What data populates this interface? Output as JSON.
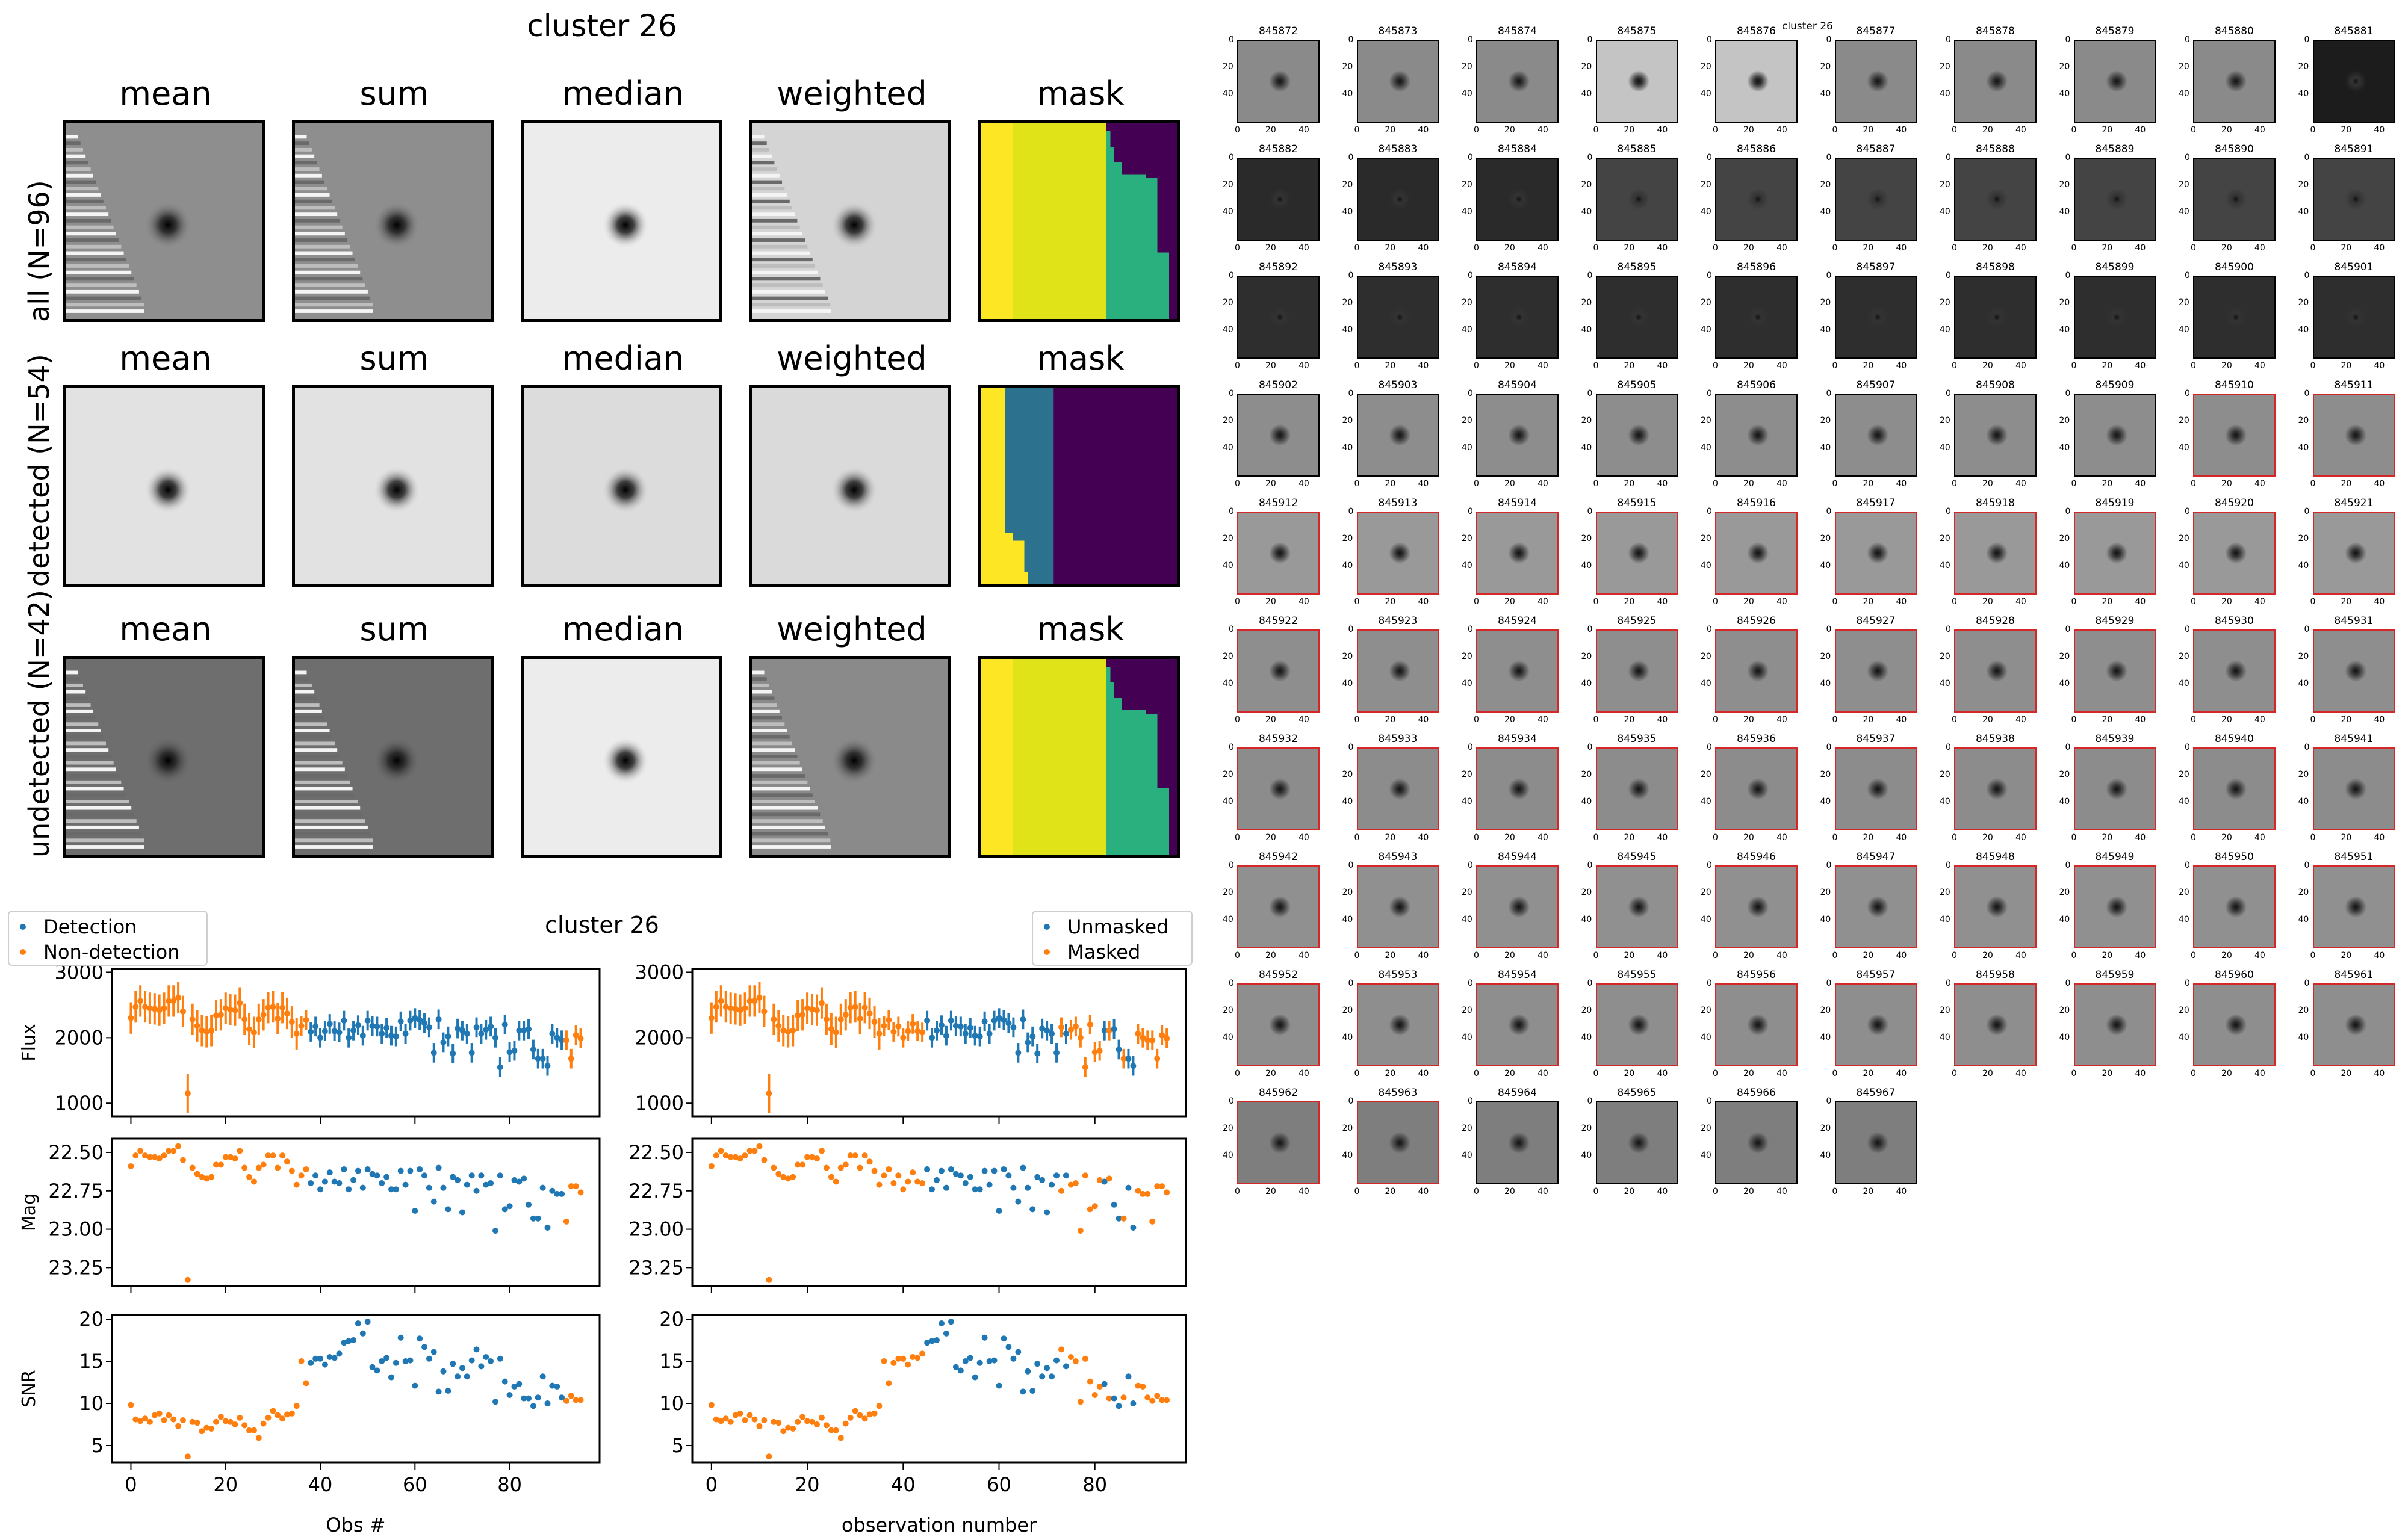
{
  "left_figure": {
    "suptitle": "cluster 26",
    "column_titles": [
      "mean",
      "sum",
      "median",
      "weighted",
      "mask"
    ],
    "rows": [
      {
        "label": "all (N=96)",
        "key": "all"
      },
      {
        "label": "detected (N=54)",
        "key": "detected"
      },
      {
        "label": "undetected (N=42)",
        "key": "undetected"
      }
    ],
    "colors": {
      "viridis_yellow": "#fde725",
      "viridis_lime": "#dfe318",
      "viridis_green": "#2ab07f",
      "viridis_blue": "#2c728e",
      "viridis_purple": "#440154"
    }
  },
  "lightcurve": {
    "title": "cluster 26",
    "colors": {
      "blue": "#1f77b4",
      "orange": "#ff7f0e"
    },
    "left_legend": [
      "Detection",
      "Non-detection"
    ],
    "right_legend": [
      "Unmasked",
      "Masked"
    ],
    "left_xlabel": "Obs #",
    "right_xlabel": "observation number",
    "flux_ylabel": "Flux",
    "mag_ylabel": "Mag",
    "snr_ylabel": "SNR",
    "x_ticks": [
      "0",
      "20",
      "40",
      "60",
      "80"
    ],
    "flux_ticks": [
      "1000",
      "2000",
      "3000"
    ],
    "mag_ticks": [
      "22.50",
      "22.75",
      "23.00",
      "23.25"
    ],
    "snr_ticks": [
      "5",
      "10",
      "15",
      "20"
    ]
  },
  "chart_data": [
    {
      "type": "scatter",
      "title": "cluster 26",
      "xlabel": "Obs #",
      "panels": [
        "Flux",
        "Mag",
        "SNR"
      ],
      "xlim": [
        -4,
        99
      ],
      "flux_ylim": [
        800,
        3050
      ],
      "mag_ylim": [
        23.37,
        22.41
      ],
      "snr_ylim": [
        3,
        20.5
      ],
      "legend": {
        "entries": [
          "Detection",
          "Non-detection"
        ],
        "placement": "top-left"
      },
      "x": [
        0,
        1,
        2,
        3,
        4,
        5,
        6,
        7,
        8,
        9,
        10,
        11,
        12,
        13,
        14,
        15,
        16,
        17,
        18,
        19,
        20,
        21,
        22,
        23,
        24,
        25,
        26,
        27,
        28,
        29,
        30,
        31,
        32,
        33,
        34,
        35,
        36,
        37,
        38,
        39,
        40,
        41,
        42,
        43,
        44,
        45,
        46,
        47,
        48,
        49,
        50,
        51,
        52,
        53,
        54,
        55,
        56,
        57,
        58,
        59,
        60,
        61,
        62,
        63,
        64,
        65,
        66,
        67,
        68,
        69,
        70,
        71,
        72,
        73,
        74,
        75,
        76,
        77,
        78,
        79,
        80,
        81,
        82,
        83,
        84,
        85,
        86,
        87,
        88,
        89,
        90,
        91,
        92,
        93,
        94,
        95
      ],
      "flux": [
        2300,
        2470,
        2560,
        2470,
        2450,
        2440,
        2420,
        2450,
        2560,
        2560,
        2610,
        2400,
        1150,
        2280,
        2180,
        2110,
        2090,
        2110,
        2340,
        2350,
        2450,
        2430,
        2420,
        2530,
        2280,
        2130,
        2080,
        2280,
        2350,
        2460,
        2470,
        2290,
        2460,
        2370,
        2240,
        2060,
        2180,
        2270,
        2090,
        2170,
        2000,
        2100,
        2210,
        2100,
        2080,
        2260,
        2000,
        2110,
        2190,
        2030,
        2260,
        2180,
        2170,
        2060,
        2150,
        2030,
        2020,
        2250,
        2060,
        2260,
        2300,
        2270,
        2220,
        2160,
        1770,
        2280,
        1930,
        2020,
        1760,
        2140,
        2110,
        2060,
        1770,
        2160,
        2060,
        2120,
        2170,
        2000,
        1550,
        2200,
        1780,
        1800,
        2110,
        2110,
        2130,
        1820,
        1680,
        1680,
        1570,
        2060,
        2000,
        1960,
        1960,
        1680,
        2040,
        1990
      ],
      "flux_err": [
        240,
        240,
        240,
        240,
        240,
        240,
        240,
        240,
        240,
        240,
        240,
        240,
        300,
        240,
        240,
        240,
        240,
        240,
        240,
        240,
        240,
        240,
        240,
        240,
        240,
        240,
        240,
        240,
        240,
        240,
        240,
        240,
        240,
        240,
        240,
        240,
        150,
        150,
        150,
        150,
        150,
        150,
        150,
        150,
        150,
        150,
        150,
        150,
        150,
        150,
        150,
        150,
        150,
        150,
        150,
        150,
        150,
        150,
        150,
        150,
        150,
        150,
        150,
        150,
        150,
        150,
        150,
        150,
        150,
        150,
        150,
        150,
        150,
        150,
        150,
        150,
        150,
        150,
        150,
        150,
        150,
        150,
        150,
        150,
        150,
        150,
        150,
        150,
        150,
        150,
        150,
        150,
        150,
        150,
        150,
        150
      ],
      "mag": [
        22.59,
        22.52,
        22.49,
        22.52,
        22.53,
        22.53,
        22.54,
        22.52,
        22.49,
        22.49,
        22.46,
        22.55,
        23.33,
        22.6,
        22.64,
        22.66,
        22.67,
        22.66,
        22.58,
        22.58,
        22.53,
        22.53,
        22.54,
        22.49,
        22.6,
        22.66,
        22.69,
        22.6,
        22.58,
        22.52,
        22.52,
        22.6,
        22.52,
        22.56,
        22.62,
        22.71,
        22.65,
        22.61,
        22.7,
        22.65,
        22.74,
        22.69,
        22.63,
        22.69,
        22.7,
        22.61,
        22.74,
        22.68,
        22.62,
        22.73,
        22.61,
        22.64,
        22.65,
        22.7,
        22.66,
        22.74,
        22.74,
        22.62,
        22.71,
        22.62,
        22.88,
        22.61,
        22.65,
        22.73,
        22.82,
        22.6,
        22.73,
        22.87,
        22.66,
        22.68,
        22.89,
        22.71,
        22.65,
        22.75,
        22.65,
        22.71,
        22.7,
        23.01,
        22.65,
        22.87,
        22.85,
        22.68,
        22.69,
        22.67,
        22.84,
        22.93,
        22.93,
        22.73,
        22.99,
        22.75,
        22.77,
        22.77,
        22.95,
        22.72,
        22.72,
        22.76
      ],
      "snr": [
        9.8,
        8.1,
        7.9,
        8.2,
        7.8,
        8.6,
        8.8,
        8.0,
        8.6,
        8.1,
        7.3,
        8.0,
        3.7,
        7.8,
        7.7,
        6.7,
        7.1,
        7.0,
        7.8,
        8.4,
        7.9,
        7.8,
        7.5,
        8.3,
        7.4,
        6.8,
        6.8,
        5.9,
        7.6,
        8.3,
        9.1,
        8.6,
        8.2,
        8.7,
        8.8,
        9.7,
        15.0,
        12.4,
        14.8,
        15.3,
        15.3,
        14.6,
        15.5,
        15.4,
        15.9,
        17.2,
        17.4,
        17.5,
        19.5,
        18.3,
        19.7,
        14.3,
        13.9,
        15.0,
        15.4,
        13.1,
        14.8,
        17.8,
        15.0,
        15.1,
        12.1,
        17.7,
        16.7,
        15.3,
        16.1,
        11.4,
        13.8,
        11.5,
        14.7,
        13.2,
        14.2,
        13.2,
        15.1,
        16.4,
        14.4,
        15.5,
        15.0,
        10.2,
        15.3,
        12.6,
        11.0,
        12.0,
        12.3,
        10.6,
        10.6,
        9.7,
        10.7,
        13.2,
        10.0,
        12.1,
        12.0,
        10.7,
        10.3,
        10.9,
        10.4,
        10.4
      ],
      "detected": [
        0,
        0,
        0,
        0,
        0,
        0,
        0,
        0,
        0,
        0,
        0,
        0,
        0,
        0,
        0,
        0,
        0,
        0,
        0,
        0,
        0,
        0,
        0,
        0,
        0,
        0,
        0,
        0,
        0,
        0,
        0,
        0,
        0,
        0,
        0,
        0,
        0,
        0,
        1,
        1,
        1,
        1,
        1,
        1,
        1,
        1,
        1,
        1,
        1,
        1,
        1,
        1,
        1,
        1,
        1,
        1,
        1,
        1,
        1,
        1,
        1,
        1,
        1,
        1,
        1,
        1,
        1,
        1,
        1,
        1,
        1,
        1,
        1,
        1,
        1,
        1,
        1,
        1,
        1,
        1,
        1,
        1,
        1,
        1,
        1,
        1,
        1,
        1,
        1,
        1,
        1,
        1,
        0,
        0,
        0,
        0
      ]
    },
    {
      "type": "scatter",
      "title": "",
      "xlabel": "observation number",
      "panels": [
        "Flux",
        "Mag",
        "SNR"
      ],
      "legend": {
        "entries": [
          "Unmasked",
          "Masked"
        ],
        "placement": "top-right"
      },
      "same_values_as": "left panel",
      "unmasked": [
        0,
        0,
        0,
        0,
        0,
        0,
        0,
        0,
        0,
        0,
        0,
        0,
        0,
        0,
        0,
        0,
        0,
        0,
        0,
        0,
        0,
        0,
        0,
        0,
        0,
        0,
        0,
        0,
        0,
        0,
        0,
        0,
        0,
        0,
        0,
        0,
        0,
        0,
        0,
        0,
        0,
        0,
        0,
        0,
        0,
        1,
        1,
        1,
        1,
        1,
        1,
        1,
        1,
        1,
        1,
        1,
        1,
        1,
        1,
        1,
        1,
        1,
        1,
        1,
        1,
        1,
        1,
        1,
        1,
        1,
        1,
        1,
        1,
        0,
        1,
        0,
        0,
        0,
        0,
        0,
        0,
        0,
        1,
        0,
        1,
        1,
        0,
        1,
        1,
        0,
        0,
        0,
        0,
        0,
        0,
        0
      ]
    }
  ],
  "thumbnails": {
    "title": "cluster 26",
    "axis_ticks": [
      "0",
      "20",
      "40"
    ],
    "first_id": 845872,
    "count": 96,
    "columns": 10,
    "red_from": 845910,
    "red_to": 845963,
    "red_color": "#d62728"
  }
}
